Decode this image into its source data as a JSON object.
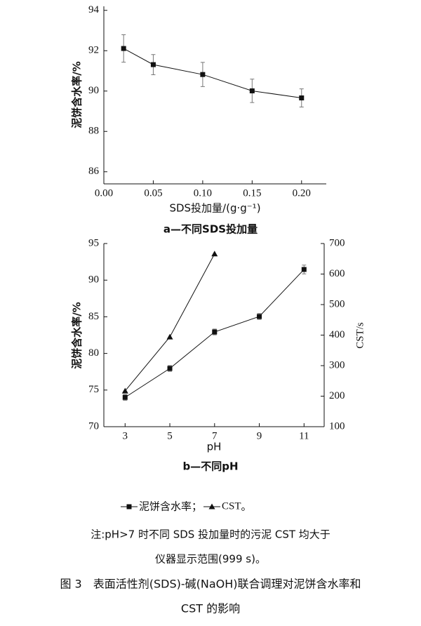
{
  "chart_data": [
    {
      "type": "line",
      "title": "a—不同SDS投加量",
      "x_label": "SDS投加量/(g·g⁻¹)",
      "y_label": "泥饼含水率/%",
      "x": [
        0.02,
        0.05,
        0.1,
        0.15,
        0.2
      ],
      "series": [
        {
          "name": "泥饼含水率",
          "color": "#111111",
          "marker": "square",
          "values": [
            92.11,
            91.31,
            90.82,
            90.01,
            89.66
          ],
          "errors": [
            0.68,
            0.5,
            0.6,
            0.58,
            0.45
          ]
        }
      ],
      "xlim": [
        0,
        0.225
      ],
      "ylim": [
        85.4,
        94.2
      ],
      "xticks": [
        {
          "value": 0,
          "label": "0.00"
        },
        {
          "value": 0.05,
          "label": "0.05"
        },
        {
          "value": 0.1,
          "label": "0.10"
        },
        {
          "value": 0.15,
          "label": "0.15"
        },
        {
          "value": 0.2,
          "label": "0.20"
        }
      ],
      "yticks": [
        86,
        88,
        90,
        92,
        94
      ]
    },
    {
      "type": "line",
      "title": "b—不同pH",
      "x_label": "pH",
      "y_label": "泥饼含水率/%",
      "y2_label": "CST/s",
      "x": [
        3,
        5,
        7,
        9,
        11
      ],
      "series": [
        {
          "name": "泥饼含水率",
          "color": "#111111",
          "marker": "square",
          "values": [
            74.0,
            77.95,
            82.93,
            85.04,
            91.46
          ],
          "errors": [
            0.4,
            0.4,
            0.4,
            0.4,
            0.6
          ]
        },
        {
          "name": "CST",
          "color": "#111111",
          "marker": "triangle",
          "axis": "y2",
          "values": [
            217,
            394,
            666,
            null,
            null
          ]
        }
      ],
      "xlim": [
        2.05,
        11.9
      ],
      "ylim": [
        70,
        95
      ],
      "y2lim": [
        100,
        700
      ],
      "xticks": [
        3,
        5,
        7,
        9,
        11
      ],
      "yticks": [
        70,
        75,
        80,
        85,
        90,
        95
      ],
      "y2ticks": [
        100,
        200,
        300,
        400,
        500,
        600,
        700
      ]
    }
  ],
  "legend": {
    "separator": "；",
    "end": "。"
  },
  "note": [
    "注:pH>7 时不同 SDS 投加量时的污泥 CST 均大于",
    "仪器显示范围(999 s)。"
  ],
  "caption": [
    "图 3　表面活性剂(SDS)-碱(NaOH)联合调理对泥饼含水率和",
    "CST 的影响"
  ]
}
